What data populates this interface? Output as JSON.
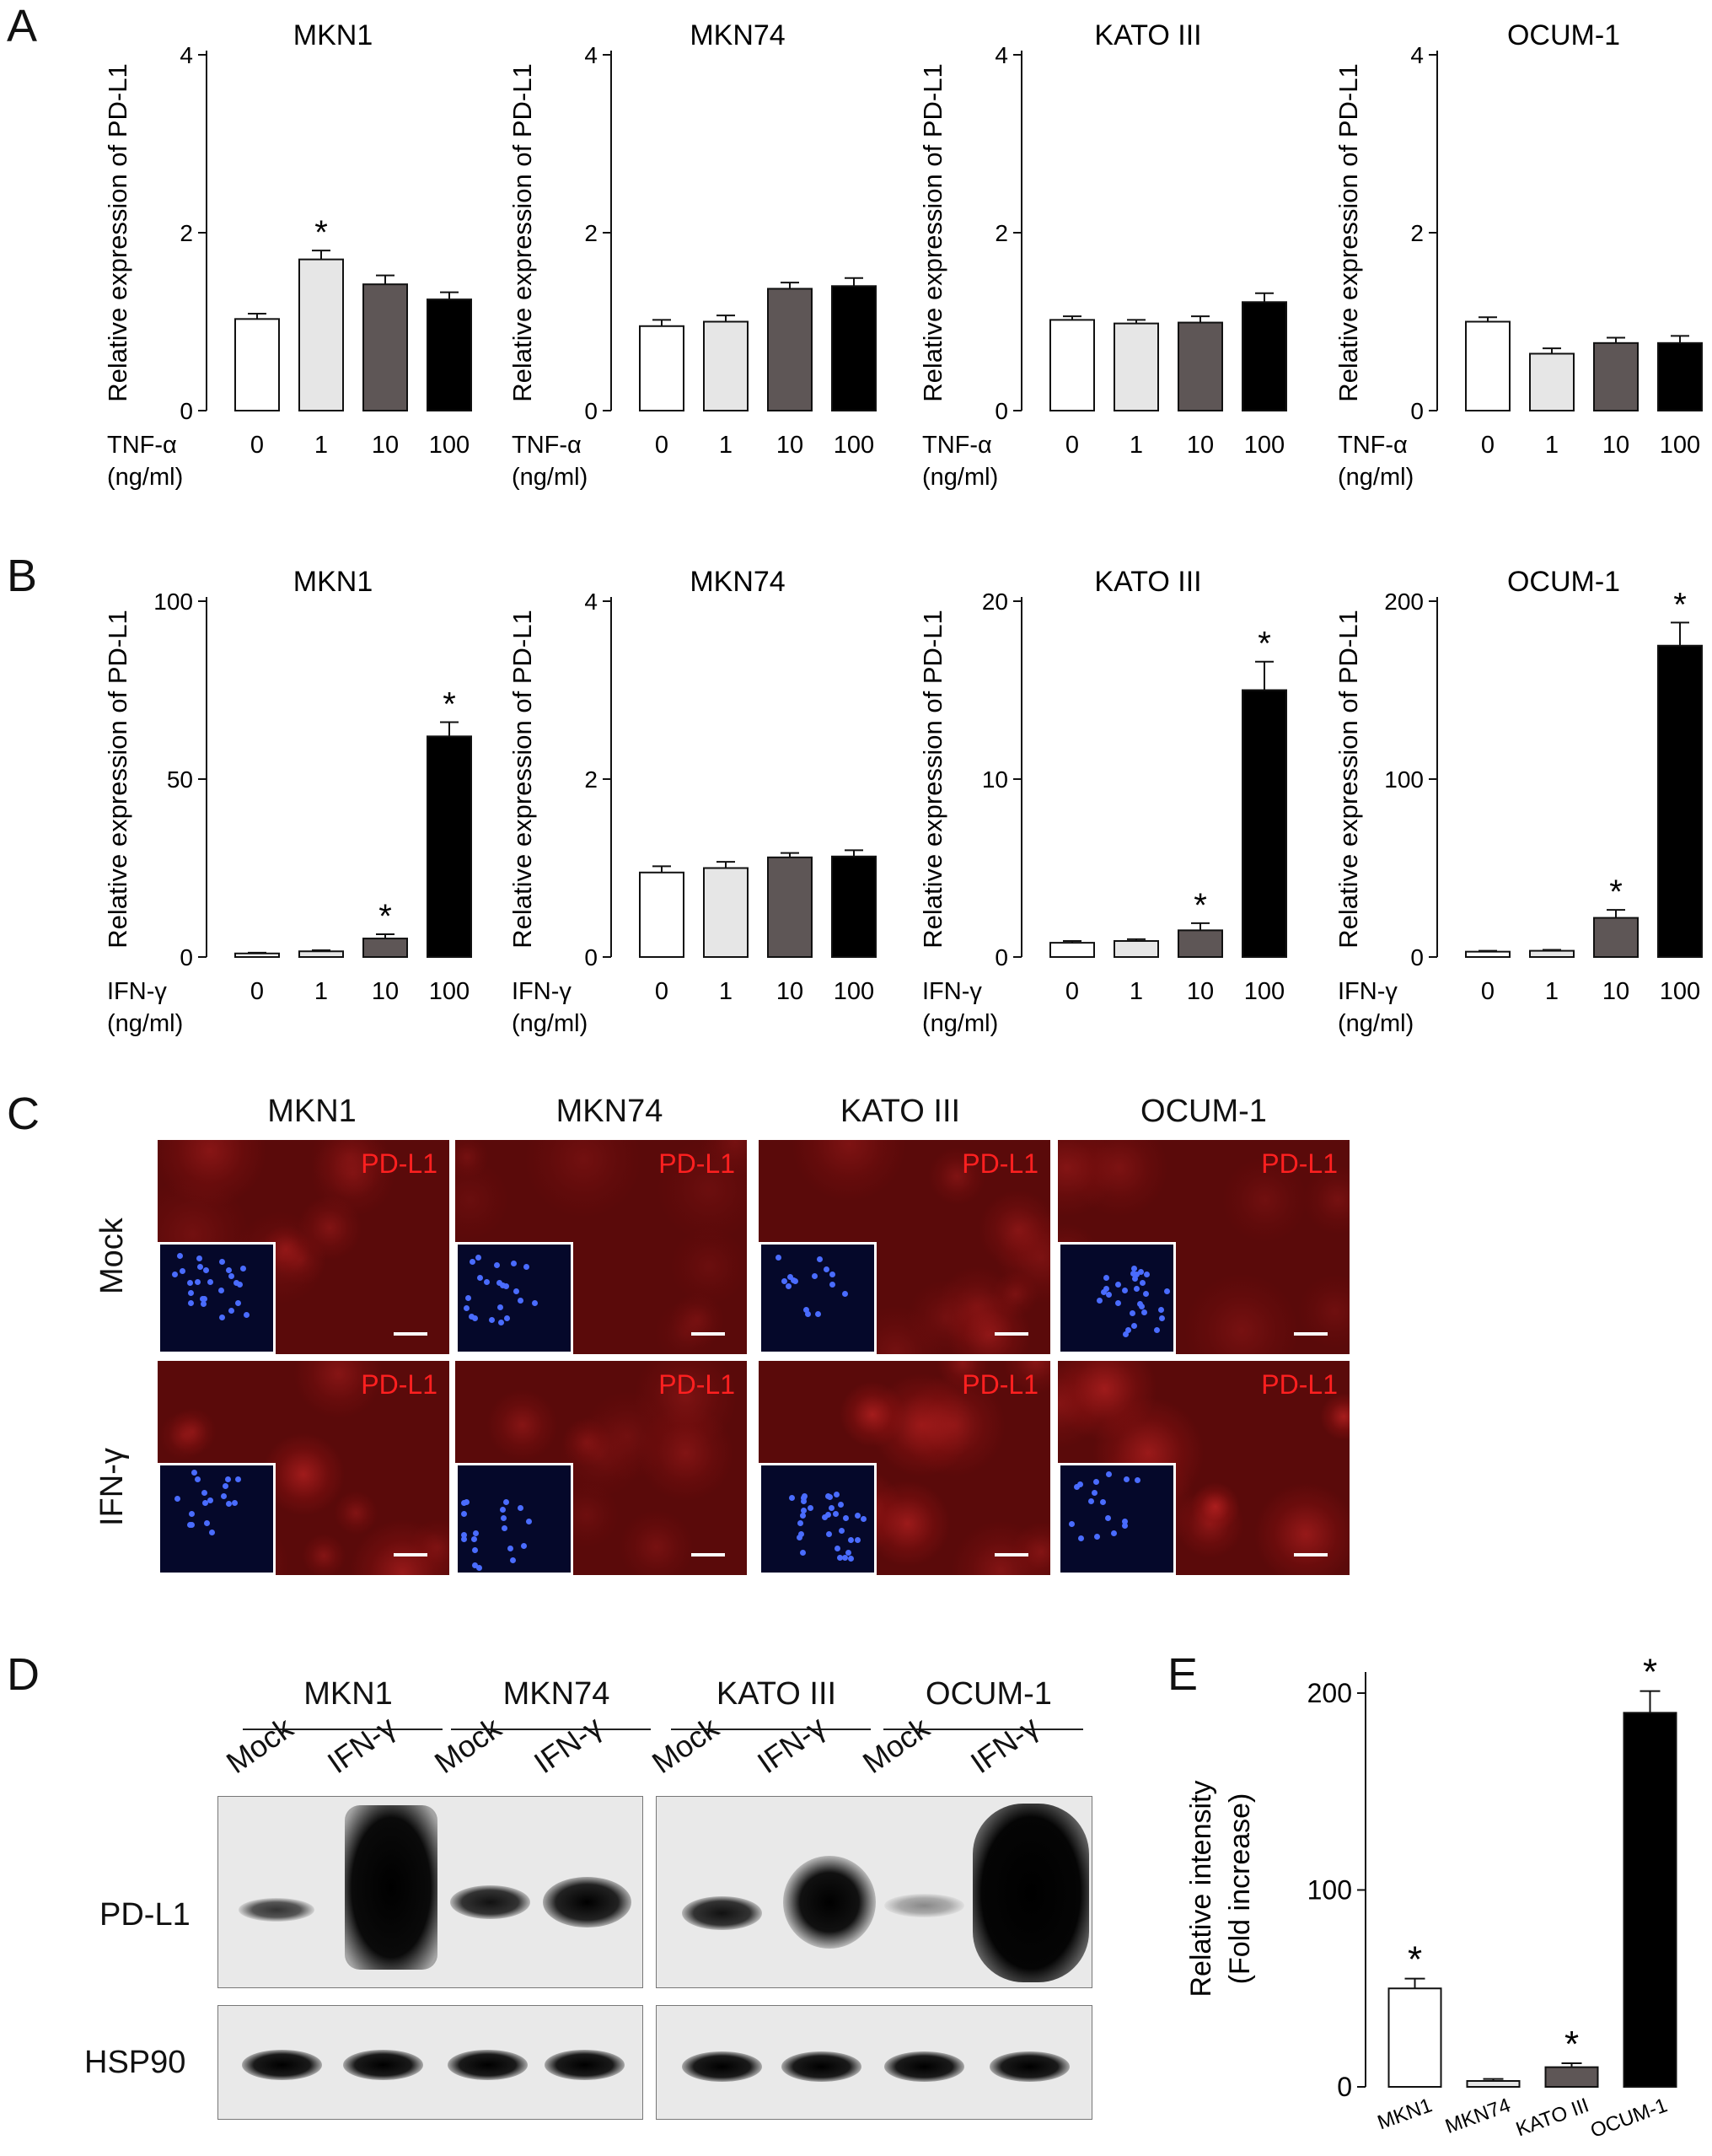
{
  "panels": {
    "A": "A",
    "B": "B",
    "C": "C",
    "D": "D",
    "E": "E"
  },
  "chart_data": [
    {
      "panel": "A",
      "type": "bar",
      "title": "MKN1",
      "ylabel": "Relative expression of PD-L1",
      "xlabel_lines": [
        "TNF-α",
        "(ng/ml)"
      ],
      "categories": [
        "0",
        "1",
        "10",
        "100"
      ],
      "values": [
        1.03,
        1.7,
        1.42,
        1.25
      ],
      "errors": [
        0.06,
        0.1,
        0.1,
        0.08
      ],
      "ylim": [
        0,
        4
      ],
      "yticks": [
        0,
        2,
        4
      ],
      "sig": [
        false,
        true,
        false,
        false
      ]
    },
    {
      "panel": "A",
      "type": "bar",
      "title": "MKN74",
      "ylabel": "Relative expression of PD-L1",
      "xlabel_lines": [
        "TNF-α",
        "(ng/ml)"
      ],
      "categories": [
        "0",
        "1",
        "10",
        "100"
      ],
      "values": [
        0.95,
        1.0,
        1.37,
        1.4
      ],
      "errors": [
        0.07,
        0.07,
        0.07,
        0.09
      ],
      "ylim": [
        0,
        4
      ],
      "yticks": [
        0,
        2,
        4
      ],
      "sig": [
        false,
        false,
        false,
        false
      ]
    },
    {
      "panel": "A",
      "type": "bar",
      "title": "KATO III",
      "ylabel": "Relative expression of PD-L1",
      "xlabel_lines": [
        "TNF-α",
        "(ng/ml)"
      ],
      "categories": [
        "0",
        "1",
        "10",
        "100"
      ],
      "values": [
        1.02,
        0.98,
        0.99,
        1.22
      ],
      "errors": [
        0.04,
        0.04,
        0.07,
        0.1
      ],
      "ylim": [
        0,
        4
      ],
      "yticks": [
        0,
        2,
        4
      ],
      "sig": [
        false,
        false,
        false,
        false
      ]
    },
    {
      "panel": "A",
      "type": "bar",
      "title": "OCUM-1",
      "ylabel": "Relative expression of PD-L1",
      "xlabel_lines": [
        "TNF-α",
        "(ng/ml)"
      ],
      "categories": [
        "0",
        "1",
        "10",
        "100"
      ],
      "values": [
        1.0,
        0.64,
        0.76,
        0.76
      ],
      "errors": [
        0.05,
        0.06,
        0.06,
        0.08
      ],
      "ylim": [
        0,
        4
      ],
      "yticks": [
        0,
        2,
        4
      ],
      "sig": [
        false,
        false,
        false,
        false
      ]
    },
    {
      "panel": "B",
      "type": "bar",
      "title": "MKN1",
      "ylabel": "Relative expression of PD-L1",
      "xlabel_lines": [
        "IFN-γ",
        "(ng/ml)"
      ],
      "categories": [
        "0",
        "1",
        "10",
        "100"
      ],
      "values": [
        1.0,
        1.6,
        5.2,
        62.0
      ],
      "errors": [
        0.2,
        0.3,
        1.2,
        4.0
      ],
      "ylim": [
        0,
        100
      ],
      "yticks": [
        0,
        50,
        100
      ],
      "sig": [
        false,
        false,
        true,
        true
      ]
    },
    {
      "panel": "B",
      "type": "bar",
      "title": "MKN74",
      "ylabel": "Relative expression of PD-L1",
      "xlabel_lines": [
        "IFN-γ",
        "(ng/ml)"
      ],
      "categories": [
        "0",
        "1",
        "10",
        "100"
      ],
      "values": [
        0.95,
        1.0,
        1.12,
        1.13
      ],
      "errors": [
        0.07,
        0.07,
        0.05,
        0.07
      ],
      "ylim": [
        0,
        4
      ],
      "yticks": [
        0,
        2,
        4
      ],
      "sig": [
        false,
        false,
        false,
        false
      ]
    },
    {
      "panel": "B",
      "type": "bar",
      "title": "KATO III",
      "ylabel": "Relative expression of PD-L1",
      "xlabel_lines": [
        "IFN-γ",
        "(ng/ml)"
      ],
      "categories": [
        "0",
        "1",
        "10",
        "100"
      ],
      "values": [
        0.8,
        0.9,
        1.5,
        15.0
      ],
      "errors": [
        0.1,
        0.1,
        0.4,
        1.6
      ],
      "ylim": [
        0,
        20
      ],
      "yticks": [
        0,
        10,
        20
      ],
      "sig": [
        false,
        false,
        true,
        true
      ]
    },
    {
      "panel": "B",
      "type": "bar",
      "title": "OCUM-1",
      "ylabel": "Relative expression of PD-L1",
      "xlabel_lines": [
        "IFN-γ",
        "(ng/ml)"
      ],
      "categories": [
        "0",
        "1",
        "10",
        "100"
      ],
      "values": [
        3.0,
        3.5,
        22.0,
        175.0
      ],
      "errors": [
        0.5,
        0.5,
        4.5,
        13.0
      ],
      "ylim": [
        0,
        200
      ],
      "yticks": [
        0,
        100,
        200
      ],
      "sig": [
        false,
        false,
        true,
        true
      ]
    },
    {
      "panel": "E",
      "type": "bar",
      "title": "",
      "ylabel_lines": [
        "Relative intensity",
        "(Fold increase)"
      ],
      "categories": [
        "MKN1",
        "MKN74",
        "KATO III",
        "OCUM-1"
      ],
      "values": [
        50.0,
        3.0,
        10.0,
        190.0
      ],
      "errors": [
        5.0,
        1.0,
        2.0,
        11.0
      ],
      "ylim": [
        0,
        200
      ],
      "yticks": [
        0,
        100,
        200
      ],
      "sig": [
        true,
        false,
        true,
        true
      ]
    }
  ],
  "colors": {
    "bars": [
      "#ffffff",
      "#e6e6e6",
      "#5e5656",
      "#000000"
    ]
  },
  "panel_c": {
    "columns": [
      "MKN1",
      "MKN74",
      "KATO III",
      "OCUM-1"
    ],
    "rows": [
      "Mock",
      "IFN-γ"
    ],
    "marker": "PD-L1"
  },
  "panel_d": {
    "groups": [
      "MKN1",
      "MKN74",
      "KATO III",
      "OCUM-1"
    ],
    "lanes": [
      "Mock",
      "IFN-γ",
      "Mock",
      "IFN-γ",
      "Mock",
      "IFN-γ",
      "Mock",
      "IFN-γ"
    ],
    "rows": [
      "PD-L1",
      "HSP90"
    ]
  }
}
